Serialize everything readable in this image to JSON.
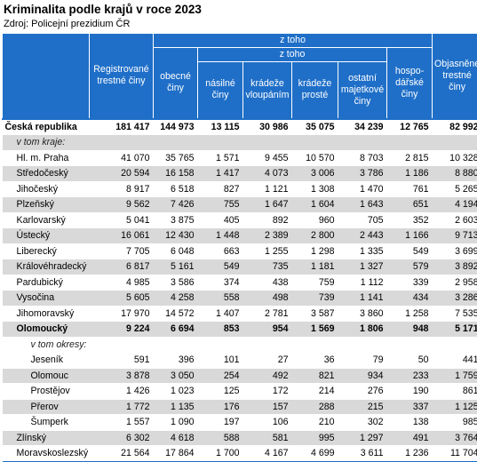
{
  "title": "Kriminalita podle krajů v roce 2023",
  "source": "Zdroj: Policejní prezidium ČR",
  "headers": {
    "registered": "Registrované trestné činy",
    "z_toho": "z toho",
    "z_toho_inner": "z toho",
    "obecne": "obecné činy",
    "nasilne": "násilné činy",
    "kradeze_vloupanim": "krádeže vloupáním",
    "kradeze_proste": "krádeže prosté",
    "ostatni_majetkove": "ostatní majetkové činy",
    "hospodarske": "hospo-dářské činy",
    "objasnene": "Objasněné trestné činy"
  },
  "rows": [
    {
      "label": "Česká republika",
      "v": [
        "181 417",
        "144 973",
        "13 115",
        "30 986",
        "35 075",
        "34 239",
        "12 765",
        "82 992"
      ]
    },
    {
      "label": "v tom kraje:",
      "v": []
    },
    {
      "label": "Hl. m. Praha",
      "v": [
        "41 070",
        "35 765",
        "1 571",
        "9 455",
        "10 570",
        "8 703",
        "2 815",
        "10 328"
      ]
    },
    {
      "label": "Středočeský",
      "v": [
        "20 594",
        "16 158",
        "1 417",
        "4 073",
        "3 006",
        "3 786",
        "1 186",
        "8 880"
      ]
    },
    {
      "label": "Jihočeský",
      "v": [
        "8 917",
        "6 518",
        "827",
        "1 121",
        "1 308",
        "1 470",
        "761",
        "5 265"
      ]
    },
    {
      "label": "Plzeňský",
      "v": [
        "9 562",
        "7 426",
        "755",
        "1 647",
        "1 604",
        "1 643",
        "651",
        "4 194"
      ]
    },
    {
      "label": "Karlovarský",
      "v": [
        "5 041",
        "3 875",
        "405",
        "892",
        "960",
        "705",
        "352",
        "2 603"
      ]
    },
    {
      "label": "Ústecký",
      "v": [
        "16 061",
        "12 430",
        "1 448",
        "2 389",
        "2 800",
        "2 443",
        "1 166",
        "9 713"
      ]
    },
    {
      "label": "Liberecký",
      "v": [
        "7 705",
        "6 048",
        "663",
        "1 255",
        "1 298",
        "1 335",
        "549",
        "3 699"
      ]
    },
    {
      "label": "Královéhradecký",
      "v": [
        "6 817",
        "5 161",
        "549",
        "735",
        "1 181",
        "1 327",
        "579",
        "3 892"
      ]
    },
    {
      "label": "Pardubický",
      "v": [
        "4 985",
        "3 586",
        "374",
        "438",
        "759",
        "1 112",
        "339",
        "2 958"
      ]
    },
    {
      "label": "Vysočina",
      "v": [
        "5 605",
        "4 258",
        "558",
        "498",
        "739",
        "1 141",
        "434",
        "3 286"
      ]
    },
    {
      "label": "Jihomoravský",
      "v": [
        "17 970",
        "14 572",
        "1 407",
        "2 781",
        "3 587",
        "3 860",
        "1 258",
        "7 535"
      ]
    },
    {
      "label": "Olomoucký",
      "v": [
        "9 224",
        "6 694",
        "853",
        "954",
        "1 569",
        "1 806",
        "948",
        "5 171"
      ]
    },
    {
      "label": "v tom okresy:",
      "v": []
    },
    {
      "label": "Jeseník",
      "v": [
        "591",
        "396",
        "101",
        "27",
        "36",
        "79",
        "50",
        "441"
      ]
    },
    {
      "label": "Olomouc",
      "v": [
        "3 878",
        "3 050",
        "254",
        "492",
        "821",
        "934",
        "233",
        "1 759"
      ]
    },
    {
      "label": "Prostějov",
      "v": [
        "1 426",
        "1 023",
        "125",
        "172",
        "214",
        "276",
        "190",
        "861"
      ]
    },
    {
      "label": "Přerov",
      "v": [
        "1 772",
        "1 135",
        "176",
        "157",
        "288",
        "215",
        "337",
        "1 125"
      ]
    },
    {
      "label": "Šumperk",
      "v": [
        "1 557",
        "1 090",
        "197",
        "106",
        "210",
        "302",
        "138",
        "985"
      ]
    },
    {
      "label": "Zlínský",
      "v": [
        "6 302",
        "4 618",
        "588",
        "581",
        "995",
        "1 297",
        "491",
        "3 764"
      ]
    },
    {
      "label": "Moravskoslezský",
      "v": [
        "21 564",
        "17 864",
        "1 700",
        "4 167",
        "4 699",
        "3 611",
        "1 236",
        "11 704"
      ]
    }
  ]
}
